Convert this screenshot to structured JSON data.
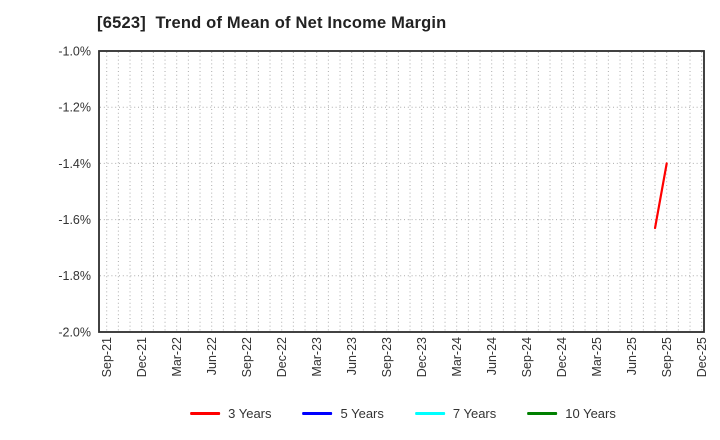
{
  "chart_data": {
    "type": "line",
    "title": "[6523]  Trend of Mean of Net Income Margin",
    "x_tick_labels": [
      "Sep-21",
      "Dec-21",
      "Mar-22",
      "Jun-22",
      "Sep-22",
      "Dec-22",
      "Mar-23",
      "Jun-23",
      "Sep-23",
      "Dec-23",
      "Mar-24",
      "Jun-24",
      "Sep-24",
      "Dec-24",
      "Mar-25",
      "Jun-25",
      "Sep-25",
      "Dec-25"
    ],
    "months_per_label": 3,
    "months_total": 51,
    "y_ticks": [
      {
        "label": "-1.0%",
        "value": -1.0
      },
      {
        "label": "-1.2%",
        "value": -1.2
      },
      {
        "label": "-1.4%",
        "value": -1.4
      },
      {
        "label": "-1.6%",
        "value": -1.6
      },
      {
        "label": "-1.8%",
        "value": -1.8
      },
      {
        "label": "-2.0%",
        "value": -2.0
      }
    ],
    "ylim": [
      -2.0,
      -1.0
    ],
    "grid": "dotted",
    "legend_position": "bottom",
    "series": [
      {
        "name": "3 Years",
        "color": "#ff0000",
        "points": [
          {
            "date": "Aug-25",
            "month_index": 47,
            "value": -1.63
          },
          {
            "date": "Sep-25",
            "month_index": 48,
            "value": -1.4
          }
        ]
      },
      {
        "name": "5 Years",
        "color": "#0000ff",
        "points": []
      },
      {
        "name": "7 Years",
        "color": "#00ffff",
        "points": []
      },
      {
        "name": "10 Years",
        "color": "#008000",
        "points": []
      }
    ],
    "colors": {
      "spine": "#2e2e2e",
      "grid": "#adadad",
      "tick_text": "#333333",
      "title_text": "#222222"
    }
  }
}
